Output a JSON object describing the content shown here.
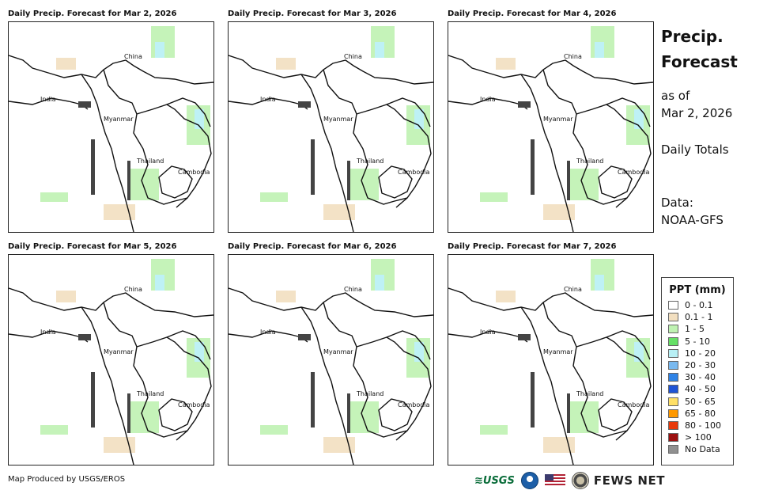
{
  "panels": [
    {
      "title": "Daily Precip. Forecast for Mar 2, 2026"
    },
    {
      "title": "Daily Precip. Forecast for Mar 3, 2026"
    },
    {
      "title": "Daily Precip. Forecast for Mar 4, 2026"
    },
    {
      "title": "Daily Precip. Forecast for Mar 5, 2026"
    },
    {
      "title": "Daily Precip. Forecast for Mar 6, 2026"
    },
    {
      "title": "Daily Precip. Forecast for Mar 7, 2026"
    }
  ],
  "map_labels": {
    "china": "China",
    "india": "India",
    "myanmar": "Myanmar",
    "thailand": "Thailand",
    "cambodia": "Cambodia"
  },
  "sidebar": {
    "title_line1": "Precip.",
    "title_line2": "Forecast",
    "asof_line1": "as of",
    "asof_line2": "Mar 2, 2026",
    "totals": "Daily Totals",
    "data_line1": "Data:",
    "data_line2": "NOAA-GFS"
  },
  "legend": {
    "title": "PPT (mm)",
    "items": [
      {
        "label": "0 - 0.1",
        "color": "#ffffff"
      },
      {
        "label": "0.1 - 1",
        "color": "#f2dfc0"
      },
      {
        "label": "1 - 5",
        "color": "#bff2b2"
      },
      {
        "label": "5 - 10",
        "color": "#66e066"
      },
      {
        "label": "10 - 20",
        "color": "#b8f0f5"
      },
      {
        "label": "20 - 30",
        "color": "#79b9ef"
      },
      {
        "label": "30 - 40",
        "color": "#2f83e6"
      },
      {
        "label": "40 - 50",
        "color": "#1f54d6"
      },
      {
        "label": "50 - 65",
        "color": "#ffe066"
      },
      {
        "label": "65 - 80",
        "color": "#ff9900"
      },
      {
        "label": "80 - 100",
        "color": "#e83a0c"
      },
      {
        "label": "> 100",
        "color": "#9c1010"
      },
      {
        "label": "No Data",
        "color": "#909090"
      }
    ]
  },
  "footer": {
    "credit": "Map Produced by USGS/EROS",
    "usgs": "≋USGS",
    "fews": "FEWS NET"
  }
}
